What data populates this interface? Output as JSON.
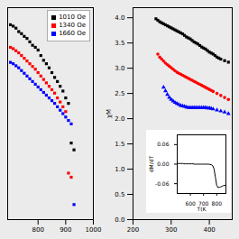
{
  "chart_data": [
    {
      "type": "scatter",
      "xlim": [
        690,
        1000
      ],
      "ylim": [
        0.1,
        3.2
      ],
      "xticks": [
        800,
        900,
        1000
      ],
      "tick_labels": "x",
      "legend": "upper right",
      "series": [
        {
          "name": "1010 Oe",
          "color": "black",
          "marker": "square",
          "x": [
            700,
            710,
            720,
            730,
            740,
            750,
            760,
            770,
            780,
            790,
            800,
            810,
            820,
            830,
            840,
            850,
            860,
            870,
            880,
            890,
            900,
            910,
            920,
            930
          ],
          "values": [
            2.95,
            2.93,
            2.9,
            2.85,
            2.82,
            2.78,
            2.75,
            2.7,
            2.65,
            2.62,
            2.58,
            2.5,
            2.43,
            2.38,
            2.32,
            2.25,
            2.18,
            2.12,
            2.05,
            1.98,
            1.88,
            1.8,
            1.22,
            1.12
          ]
        },
        {
          "name": "1340 Oe",
          "color": "red",
          "marker": "square",
          "x": [
            700,
            710,
            720,
            730,
            740,
            750,
            760,
            770,
            780,
            790,
            800,
            810,
            820,
            830,
            840,
            850,
            860,
            870,
            880,
            890,
            900,
            910,
            920
          ],
          "values": [
            2.62,
            2.6,
            2.57,
            2.54,
            2.5,
            2.46,
            2.42,
            2.38,
            2.34,
            2.3,
            2.25,
            2.2,
            2.15,
            2.1,
            2.05,
            2.0,
            1.95,
            1.88,
            1.82,
            1.75,
            1.68,
            0.78,
            0.72
          ]
        },
        {
          "name": "1660 Oe",
          "color": "blue",
          "marker": "square",
          "x": [
            700,
            710,
            720,
            730,
            740,
            750,
            760,
            770,
            780,
            790,
            800,
            810,
            820,
            830,
            840,
            850,
            860,
            870,
            880,
            890,
            900,
            910,
            920,
            930
          ],
          "values": [
            2.4,
            2.38,
            2.35,
            2.32,
            2.28,
            2.24,
            2.2,
            2.16,
            2.12,
            2.08,
            2.04,
            2.0,
            1.96,
            1.92,
            1.88,
            1.84,
            1.8,
            1.75,
            1.7,
            1.65,
            1.6,
            1.55,
            1.5,
            0.32
          ]
        }
      ]
    },
    {
      "type": "scatter",
      "ylabel": "χM",
      "xlim": [
        200,
        460
      ],
      "ylim": [
        0.0,
        4.2
      ],
      "xticks": [
        200,
        300,
        400
      ],
      "yticks": [
        {
          "value": 0.0,
          "label": "0.0"
        },
        0.5,
        {
          "value": 1.0,
          "label": "1.0"
        },
        1.5,
        {
          "value": 2.0,
          "label": "2.0"
        },
        2.5,
        {
          "value": 3.0,
          "label": "3.0"
        },
        3.5,
        {
          "value": 4.0,
          "label": "4.0"
        }
      ],
      "series": [
        {
          "color": "black",
          "marker": "square",
          "x": [
            260,
            265,
            270,
            275,
            280,
            285,
            290,
            295,
            300,
            305,
            310,
            315,
            320,
            325,
            330,
            335,
            340,
            345,
            350,
            355,
            360,
            365,
            370,
            375,
            380,
            385,
            390,
            395,
            400,
            405,
            410,
            415,
            420,
            425,
            430,
            440,
            450
          ],
          "values": [
            3.98,
            3.95,
            3.92,
            3.9,
            3.88,
            3.86,
            3.84,
            3.82,
            3.8,
            3.78,
            3.76,
            3.74,
            3.72,
            3.7,
            3.68,
            3.65,
            3.62,
            3.6,
            3.58,
            3.55,
            3.52,
            3.5,
            3.48,
            3.45,
            3.42,
            3.4,
            3.38,
            3.35,
            3.32,
            3.3,
            3.28,
            3.25,
            3.22,
            3.2,
            3.18,
            3.15,
            3.12
          ]
        },
        {
          "color": "red",
          "marker": "circle",
          "x": [
            265,
            270,
            275,
            280,
            285,
            290,
            295,
            300,
            305,
            310,
            315,
            320,
            325,
            330,
            335,
            340,
            345,
            350,
            355,
            360,
            365,
            370,
            375,
            380,
            385,
            390,
            395,
            400,
            405,
            410,
            420,
            430,
            440,
            450
          ],
          "values": [
            3.28,
            3.22,
            3.18,
            3.14,
            3.1,
            3.07,
            3.04,
            3.01,
            2.98,
            2.95,
            2.92,
            2.9,
            2.88,
            2.86,
            2.84,
            2.82,
            2.8,
            2.78,
            2.76,
            2.74,
            2.72,
            2.7,
            2.68,
            2.66,
            2.64,
            2.62,
            2.6,
            2.58,
            2.56,
            2.54,
            2.5,
            2.46,
            2.42,
            2.38
          ]
        },
        {
          "color": "blue",
          "marker": "triangle",
          "x": [
            280,
            285,
            290,
            295,
            300,
            305,
            310,
            315,
            320,
            325,
            330,
            335,
            340,
            345,
            350,
            355,
            360,
            365,
            370,
            375,
            380,
            385,
            390,
            395,
            400,
            405,
            410,
            420,
            430,
            440,
            450
          ],
          "values": [
            2.62,
            2.55,
            2.48,
            2.42,
            2.38,
            2.35,
            2.32,
            2.3,
            2.28,
            2.26,
            2.25,
            2.24,
            2.23,
            2.22,
            2.22,
            2.22,
            2.22,
            2.22,
            2.22,
            2.22,
            2.22,
            2.22,
            2.22,
            2.21,
            2.21,
            2.2,
            2.19,
            2.17,
            2.15,
            2.13,
            2.1
          ]
        }
      ]
    },
    {
      "type": "line",
      "xlabel": "T(K",
      "ylabel": "dM/dT",
      "color": "black",
      "xlim": [
        500,
        870
      ],
      "ylim": [
        -0.09,
        0.09
      ],
      "xticks": [
        600,
        700,
        800
      ],
      "yticks": [
        -0.06,
        {
          "value": 0.0,
          "label": "0.00"
        },
        0.06
      ],
      "x": [
        500,
        510,
        520,
        530,
        540,
        550,
        560,
        570,
        580,
        590,
        600,
        610,
        620,
        630,
        640,
        650,
        660,
        670,
        680,
        690,
        700,
        710,
        720,
        730,
        740,
        750,
        760,
        770,
        780,
        790,
        800,
        810,
        820,
        830,
        840,
        850,
        860,
        870
      ],
      "values": [
        0.002,
        0.002,
        0.002,
        0.002,
        0.002,
        0.001,
        0.001,
        0.001,
        0.001,
        0.001,
        0.001,
        0.001,
        0.001,
        0.0,
        0.0,
        0.0,
        0.0,
        0.0,
        0.0,
        0.0,
        0.0,
        0.0,
        0.0,
        0.0,
        0.0,
        -0.001,
        -0.002,
        -0.005,
        -0.015,
        -0.04,
        -0.065,
        -0.072,
        -0.071,
        -0.07,
        -0.068,
        -0.066,
        -0.065,
        -0.065
      ]
    }
  ]
}
